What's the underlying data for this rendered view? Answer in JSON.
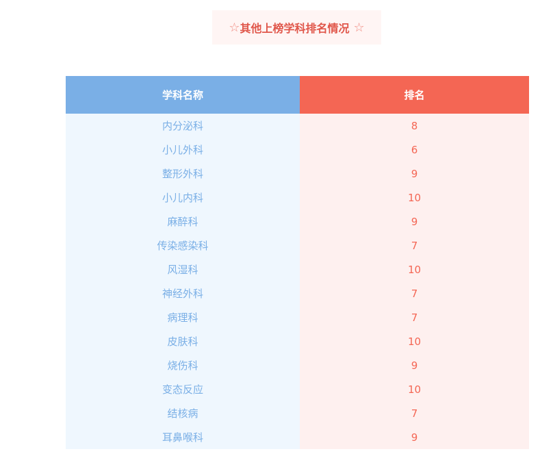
{
  "title": {
    "star_left": "☆",
    "text": "其他上榜学科排名情况",
    "star_right": "☆"
  },
  "table": {
    "headers": [
      "学科名称",
      "排名"
    ],
    "rows": [
      [
        "内分泌科",
        "8"
      ],
      [
        "小儿外科",
        "6"
      ],
      [
        "整形外科",
        "9"
      ],
      [
        "小儿内科",
        "10"
      ],
      [
        "麻醉科",
        "9"
      ],
      [
        "传染感染科",
        "7"
      ],
      [
        "风湿科",
        "10"
      ],
      [
        "神经外科",
        "7"
      ],
      [
        "病理科",
        "7"
      ],
      [
        "皮肤科",
        "10"
      ],
      [
        "烧伤科",
        "9"
      ],
      [
        "变态反应",
        "10"
      ],
      [
        "结核病",
        "7"
      ],
      [
        "耳鼻喉科",
        "9"
      ]
    ]
  },
  "colors": {
    "header_left": "#7aafe6",
    "header_right": "#f46654",
    "title": "#e0564a"
  }
}
